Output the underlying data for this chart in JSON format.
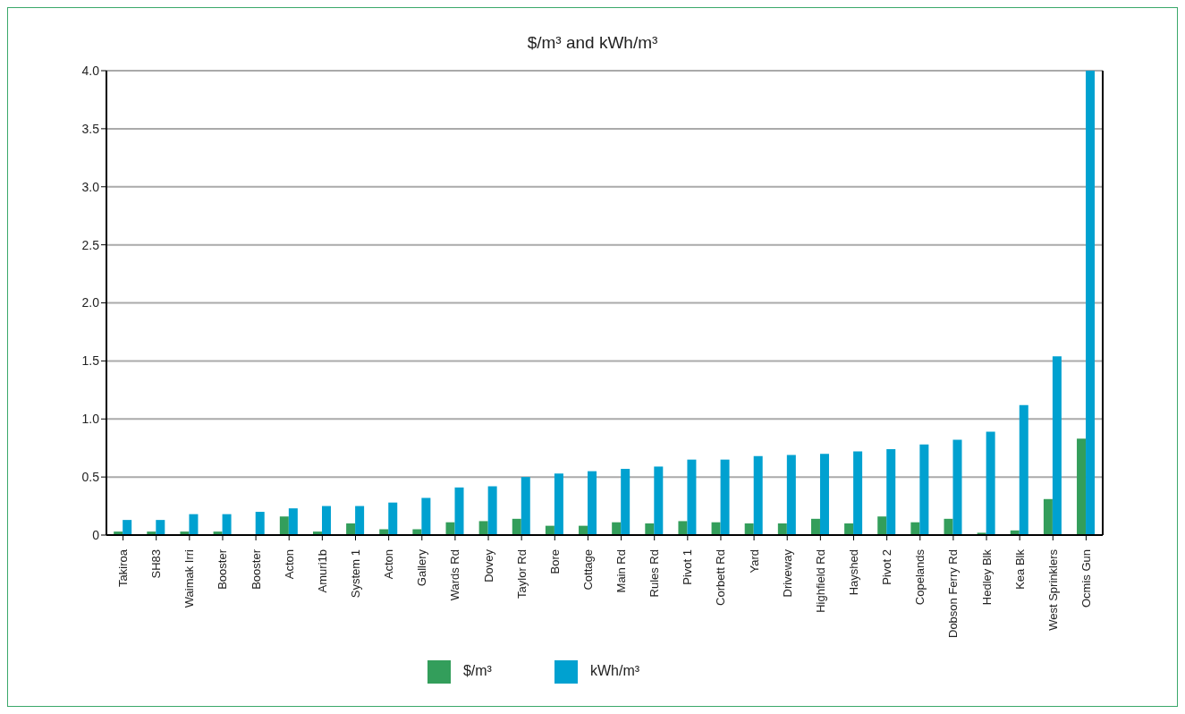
{
  "chart_data": {
    "type": "bar",
    "title": "$/m³ and kWh/m³",
    "categories": [
      "Takiroa",
      "SH83",
      "Waimak Irri",
      "Booster",
      "Booster",
      "Acton",
      "Amuri1b",
      "System 1",
      "Acton",
      "Gallery",
      "Wards Rd",
      "Dovey",
      "Taylor Rd",
      "Bore",
      "Cottage",
      "Main Rd",
      "Rules Rd",
      "Pivot 1",
      "Corbett Rd",
      "Yard",
      "Driveway",
      "Highfield Rd",
      "Hayshed",
      "Pivot 2",
      "Copelands",
      "Dobson Ferry Rd",
      "Hedley Blk",
      "Kea Blk",
      "West Sprinklers",
      "Ocmis Gun"
    ],
    "series": [
      {
        "name": "$/m³",
        "color": "#339e5b",
        "values": [
          0.03,
          0.03,
          0.03,
          0.03,
          0,
          0.16,
          0.03,
          0.1,
          0.05,
          0.05,
          0.11,
          0.12,
          0.14,
          0.08,
          0.08,
          0.11,
          0.1,
          0.12,
          0.11,
          0.1,
          0.1,
          0.14,
          0.1,
          0.16,
          0.11,
          0.14,
          0.02,
          0.04,
          0.31,
          0.83
        ]
      },
      {
        "name": "kWh/m³",
        "color": "#00a1d0",
        "values": [
          0.13,
          0.13,
          0.18,
          0.18,
          0.2,
          0.23,
          0.25,
          0.25,
          0.28,
          0.32,
          0.41,
          0.42,
          0.5,
          0.53,
          0.55,
          0.57,
          0.59,
          0.65,
          0.65,
          0.68,
          0.69,
          0.7,
          0.72,
          0.74,
          0.78,
          0.82,
          0.89,
          1.12,
          1.54,
          4.0
        ]
      }
    ],
    "ylim": [
      0,
      4.0
    ],
    "yticks": [
      0,
      0.5,
      {
        "value": 1,
        "label": "1.0"
      },
      1.5,
      {
        "value": 2,
        "label": "2.0"
      },
      2.5,
      {
        "value": 3,
        "label": "3.0"
      },
      3.5,
      {
        "value": 4,
        "label": "4.0"
      }
    ],
    "grid": "y",
    "legend": "bottom"
  }
}
